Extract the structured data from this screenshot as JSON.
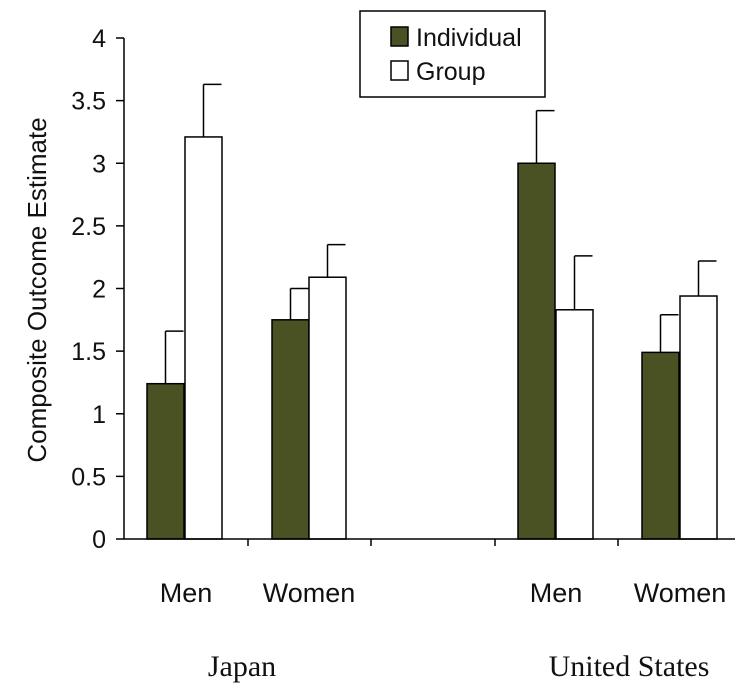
{
  "chart_data": {
    "type": "bar",
    "title": "",
    "xlabel": "",
    "ylabel": "Composite Outcome Estimate",
    "ylim": [
      0,
      4
    ],
    "yticks": [
      "0",
      "0.5",
      "1",
      "1.5",
      "2",
      "2.5",
      "3",
      "3.5",
      "4"
    ],
    "grid": false,
    "legend_position": "top-center",
    "groups": [
      {
        "name": "Japan",
        "categories": [
          "Men",
          "Women"
        ]
      },
      {
        "name": "United States",
        "categories": [
          "Men",
          "Women"
        ]
      }
    ],
    "series": [
      {
        "name": "Individual",
        "color": "#4a5224",
        "values": [
          1.24,
          1.75,
          3.0,
          1.49
        ],
        "errors": [
          0.42,
          0.25,
          0.42,
          0.3
        ]
      },
      {
        "name": "Group",
        "color": "#ffffff",
        "values": [
          3.21,
          2.09,
          1.83,
          1.94
        ],
        "errors": [
          0.42,
          0.26,
          0.43,
          0.28
        ]
      }
    ]
  }
}
